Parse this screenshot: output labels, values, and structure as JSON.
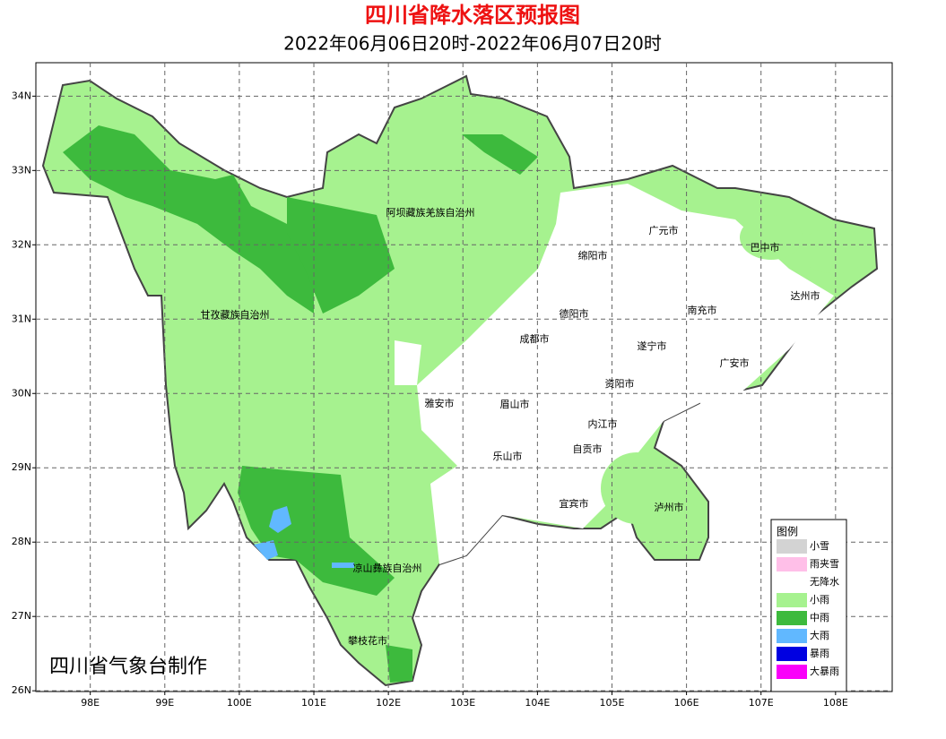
{
  "title": "四川省降水落区预报图",
  "subtitle": "2022年06月06日20时-2022年06月07日20时",
  "credit": "四川省气象台制作",
  "map": {
    "xlim": [
      97.27,
      108.76
    ],
    "ylim": [
      25.99,
      34.45
    ],
    "grid": true,
    "xticks": [
      {
        "value": 98,
        "label": "98E"
      },
      {
        "value": 99,
        "label": "99E"
      },
      {
        "value": 100,
        "label": "100E"
      },
      {
        "value": 101,
        "label": "101E"
      },
      {
        "value": 102,
        "label": "102E"
      },
      {
        "value": 103,
        "label": "103E"
      },
      {
        "value": 104,
        "label": "104E"
      },
      {
        "value": 105,
        "label": "105E"
      },
      {
        "value": 106,
        "label": "106E"
      },
      {
        "value": 107,
        "label": "107E"
      },
      {
        "value": 108,
        "label": "108E"
      }
    ],
    "yticks": [
      {
        "value": 26,
        "label": "26N"
      },
      {
        "value": 27,
        "label": "27N"
      },
      {
        "value": 28,
        "label": "28N"
      },
      {
        "value": 29,
        "label": "29N"
      },
      {
        "value": 30,
        "label": "30N"
      },
      {
        "value": 31,
        "label": "31N"
      },
      {
        "value": 32,
        "label": "32N"
      },
      {
        "value": 33,
        "label": "33N"
      },
      {
        "value": 34,
        "label": "34N"
      }
    ]
  },
  "regions": [
    "阿坝藏族羌族自治州",
    "甘孜藏族自治州",
    "凉山彝族自治州",
    "攀枝花市",
    "雅安市",
    "眉山市",
    "乐山市",
    "成都市",
    "德阳市",
    "绵阳市",
    "广元市",
    "巴中市",
    "达州市",
    "南充市",
    "遂宁市",
    "广安市",
    "资阳市",
    "内江市",
    "自贡市",
    "宜宾市",
    "泸州市"
  ],
  "legend": {
    "title": "图例",
    "items": [
      {
        "name": "小雪",
        "color": "#d3d3d3"
      },
      {
        "name": "雨夹雪",
        "color": "#ffbfe8"
      },
      {
        "name": "无降水",
        "color": "#ffffff"
      },
      {
        "name": "小雨",
        "color": "#a6f28f"
      },
      {
        "name": "中雨",
        "color": "#3dba3d"
      },
      {
        "name": "大雨",
        "color": "#61b8ff"
      },
      {
        "name": "暴雨",
        "color": "#0000e1"
      },
      {
        "name": "大暴雨",
        "color": "#fa00fa"
      }
    ]
  }
}
